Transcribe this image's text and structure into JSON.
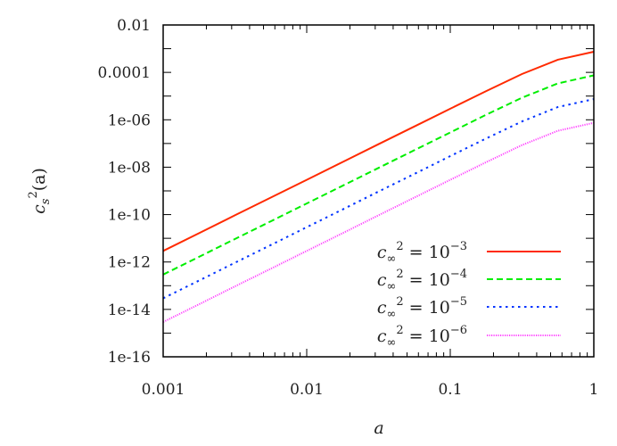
{
  "chart_data": {
    "type": "line",
    "title": "",
    "xlabel": "a",
    "ylabel": {
      "base": "c",
      "sub": "s",
      "sup": "2",
      "arg": "(a)"
    },
    "xscale": "log",
    "yscale": "log",
    "xlim": [
      0.001,
      1
    ],
    "ylim": [
      1e-16,
      0.01
    ],
    "grid": false,
    "legend_position": "bottom-right",
    "x_ticks": [
      {
        "value": 0.001,
        "label": "0.001"
      },
      {
        "value": 0.01,
        "label": "0.01"
      },
      {
        "value": 0.1,
        "label": "0.1"
      },
      {
        "value": 1,
        "label": "1"
      }
    ],
    "y_ticks": [
      {
        "value": 0.01,
        "label": "0.01"
      },
      {
        "value": 0.0001,
        "label": "0.0001"
      },
      {
        "value": 1e-06,
        "label": "1e-06"
      },
      {
        "value": 1e-08,
        "label": "1e-08"
      },
      {
        "value": 1e-10,
        "label": "1e-10"
      },
      {
        "value": 1e-12,
        "label": "1e-12"
      },
      {
        "value": 1e-14,
        "label": "1e-14"
      },
      {
        "value": 1e-16,
        "label": "1e-16"
      }
    ],
    "x": [
      0.001,
      0.00178,
      0.00316,
      0.00562,
      0.01,
      0.0178,
      0.0316,
      0.0562,
      0.1,
      0.178,
      0.316,
      0.562,
      1
    ],
    "series": [
      {
        "name": {
          "base": "c",
          "sub": "∞",
          "sup": "2",
          "eq": " = 10",
          "exp": "−3"
        },
        "color": "#ff2a00",
        "style": "solid",
        "values": [
          2.94e-12,
          1.65e-11,
          9.3e-11,
          5.2e-10,
          2.94e-09,
          1.65e-08,
          9.3e-08,
          5.2e-07,
          2.93e-06,
          1.63e-05,
          8.5e-05,
          0.000344,
          0.000746
        ]
      },
      {
        "name": {
          "base": "c",
          "sub": "∞",
          "sup": "2",
          "eq": " = 10",
          "exp": "−4"
        },
        "color": "#00ee00",
        "style": "dashed",
        "values": [
          2.94e-13,
          1.65e-12,
          9.3e-12,
          5.2e-11,
          2.94e-10,
          1.65e-09,
          9.3e-09,
          5.2e-08,
          2.93e-07,
          1.63e-06,
          8.5e-06,
          3.44e-05,
          7.46e-05
        ]
      },
      {
        "name": {
          "base": "c",
          "sub": "∞",
          "sup": "2",
          "eq": " = 10",
          "exp": "−5"
        },
        "color": "#0033ff",
        "style": "dotted",
        "values": [
          2.94e-14,
          1.65e-13,
          9.3e-13,
          5.2e-12,
          2.94e-11,
          1.65e-10,
          9.3e-10,
          5.2e-09,
          2.93e-08,
          1.63e-07,
          8.5e-07,
          3.44e-06,
          7.46e-06
        ]
      },
      {
        "name": {
          "base": "c",
          "sub": "∞",
          "sup": "2",
          "eq": " = 10",
          "exp": "−6"
        },
        "color": "#ff44ff",
        "style": "fine-dotted",
        "values": [
          2.94e-15,
          1.65e-14,
          9.3e-14,
          5.2e-13,
          2.94e-12,
          1.65e-11,
          9.3e-11,
          5.2e-10,
          2.93e-09,
          1.63e-08,
          8.5e-08,
          3.44e-07,
          7.46e-07
        ]
      }
    ]
  }
}
